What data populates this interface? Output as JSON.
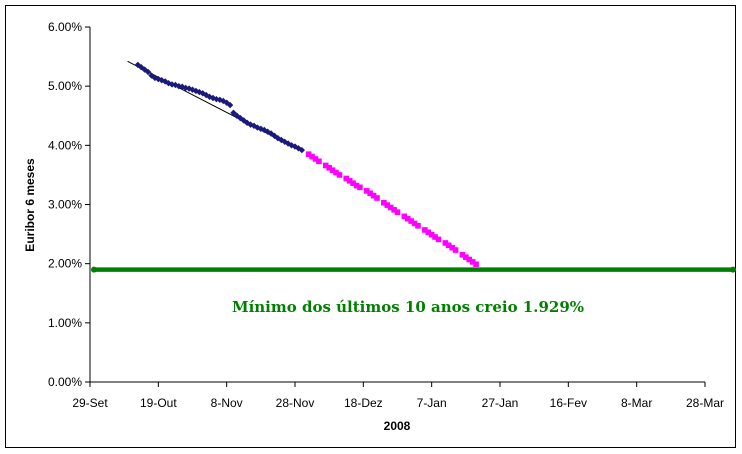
{
  "chart_data": {
    "type": "scatter",
    "xlabel": "2008",
    "ylabel": "Euribor 6 meses",
    "x_ticks": [
      "29-Set",
      "19-Out",
      "8-Nov",
      "28-Nov",
      "18-Dez",
      "7-Jan",
      "27-Jan",
      "16-Fev",
      "8-Mar",
      "28-Mar"
    ],
    "y_ticks": [
      "0.00%",
      "1.00%",
      "2.00%",
      "3.00%",
      "4.00%",
      "5.00%",
      "6.00%"
    ],
    "x_range_days_from_29_set": [
      0,
      180
    ],
    "y_range_percent": [
      0,
      6
    ],
    "grid": false,
    "legend": "none",
    "series": [
      {
        "color": "#1a1a7a",
        "marker": "diamond",
        "points": [
          [
            14,
            5.36
          ],
          [
            15,
            5.32
          ],
          [
            16,
            5.28
          ],
          [
            17,
            5.24
          ],
          [
            18,
            5.18
          ],
          [
            19,
            5.14
          ],
          [
            20,
            5.12
          ],
          [
            21,
            5.1
          ],
          [
            22,
            5.08
          ],
          [
            23,
            5.05
          ],
          [
            24,
            5.03
          ],
          [
            25,
            5.02
          ],
          [
            26,
            5.0
          ],
          [
            27,
            4.99
          ],
          [
            28,
            4.97
          ],
          [
            29,
            4.96
          ],
          [
            30,
            4.94
          ],
          [
            31,
            4.92
          ],
          [
            32,
            4.9
          ],
          [
            33,
            4.88
          ],
          [
            34,
            4.85
          ],
          [
            35,
            4.82
          ],
          [
            36,
            4.8
          ],
          [
            37,
            4.78
          ],
          [
            38,
            4.77
          ],
          [
            39,
            4.75
          ],
          [
            40,
            4.72
          ],
          [
            41,
            4.68
          ],
          [
            42,
            4.55
          ],
          [
            43,
            4.5
          ],
          [
            44,
            4.46
          ],
          [
            45,
            4.42
          ],
          [
            46,
            4.38
          ],
          [
            47,
            4.35
          ],
          [
            48,
            4.33
          ],
          [
            49,
            4.3
          ],
          [
            50,
            4.28
          ],
          [
            51,
            4.26
          ],
          [
            52,
            4.23
          ],
          [
            53,
            4.2
          ],
          [
            54,
            4.16
          ],
          [
            55,
            4.12
          ],
          [
            56,
            4.09
          ],
          [
            57,
            4.06
          ],
          [
            58,
            4.03
          ],
          [
            59,
            4.0
          ],
          [
            60,
            3.98
          ],
          [
            61,
            3.95
          ],
          [
            62,
            3.92
          ]
        ]
      },
      {
        "color": "#ff00ff",
        "marker": "square",
        "points": [
          [
            64,
            3.85
          ],
          [
            65,
            3.81
          ],
          [
            66,
            3.77
          ],
          [
            67,
            3.73
          ],
          [
            69,
            3.66
          ],
          [
            70,
            3.62
          ],
          [
            71,
            3.58
          ],
          [
            72,
            3.54
          ],
          [
            73,
            3.5
          ],
          [
            75,
            3.44
          ],
          [
            76,
            3.4
          ],
          [
            77,
            3.36
          ],
          [
            78,
            3.32
          ],
          [
            79,
            3.29
          ],
          [
            81,
            3.23
          ],
          [
            82,
            3.19
          ],
          [
            83,
            3.15
          ],
          [
            84,
            3.11
          ],
          [
            86,
            3.03
          ],
          [
            87,
            2.99
          ],
          [
            88,
            2.95
          ],
          [
            89,
            2.91
          ],
          [
            90,
            2.87
          ],
          [
            92,
            2.8
          ],
          [
            93,
            2.76
          ],
          [
            94,
            2.72
          ],
          [
            95,
            2.68
          ],
          [
            96,
            2.64
          ],
          [
            98,
            2.57
          ],
          [
            99,
            2.53
          ],
          [
            100,
            2.49
          ],
          [
            101,
            2.45
          ],
          [
            102,
            2.41
          ],
          [
            104,
            2.35
          ],
          [
            105,
            2.31
          ],
          [
            106,
            2.27
          ],
          [
            107,
            2.23
          ],
          [
            109,
            2.15
          ],
          [
            110,
            2.11
          ],
          [
            111,
            2.07
          ],
          [
            112,
            2.03
          ],
          [
            113,
            1.99
          ]
        ]
      }
    ],
    "trendline": {
      "color": "#000000",
      "from": [
        11,
        5.42
      ],
      "to": [
        62,
        3.9
      ]
    },
    "reference_line": {
      "y": 1.9,
      "color": "#008000"
    },
    "annotation": {
      "text": "Mínimo dos últimos 10 anos creio 1.929%",
      "color": "#008000"
    }
  }
}
